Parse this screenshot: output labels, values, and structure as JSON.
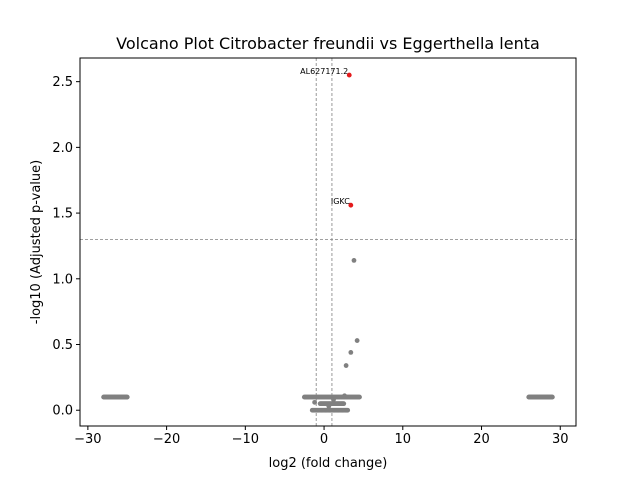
{
  "chart_data": {
    "type": "scatter",
    "title": "Volcano Plot Citrobacter freundii vs Eggerthella lenta",
    "xlabel": "log2 (fold change)",
    "ylabel": "-log10 (Adjusted p-value)",
    "xlim": [
      -31,
      32
    ],
    "ylim": [
      -0.12,
      2.68
    ],
    "xticks": [
      -30,
      -20,
      -10,
      0,
      10,
      20,
      30
    ],
    "yticks": [
      0.0,
      0.5,
      1.0,
      1.5,
      2.0,
      2.5
    ],
    "ytick_labels": [
      "0.0",
      "0.5",
      "1.0",
      "1.5",
      "2.0",
      "2.5"
    ],
    "grid": false,
    "thresholds": {
      "vertical": [
        -1,
        1
      ],
      "horizontal": 1.3
    },
    "colors": {
      "not_significant": "#808080",
      "significant": "#e41a1c",
      "threshold_line": "#808080"
    },
    "bands": [
      {
        "x_start": -28,
        "x_end": -25,
        "y": 0.1,
        "count": 40,
        "significant": false
      },
      {
        "x_start": 26,
        "x_end": 29,
        "y": 0.1,
        "count": 40,
        "significant": false
      },
      {
        "x_start": -2.5,
        "x_end": 4.5,
        "y": 0.1,
        "count": 55,
        "significant": false
      },
      {
        "x_start": -1.5,
        "x_end": 3.0,
        "y": 0.0,
        "count": 45,
        "significant": false
      },
      {
        "x_start": -0.5,
        "x_end": 2.5,
        "y": 0.05,
        "count": 30,
        "significant": false
      }
    ],
    "points": [
      {
        "x": 3.2,
        "y": 2.55,
        "label": "AL627171.2",
        "significant": true
      },
      {
        "x": 3.4,
        "y": 1.56,
        "label": "IGKC",
        "significant": true
      },
      {
        "x": 3.8,
        "y": 1.14,
        "label": "",
        "significant": false
      },
      {
        "x": 4.2,
        "y": 0.53,
        "label": "",
        "significant": false
      },
      {
        "x": 3.4,
        "y": 0.44,
        "label": "",
        "significant": false
      },
      {
        "x": 2.8,
        "y": 0.34,
        "label": "",
        "significant": false
      },
      {
        "x": 2.6,
        "y": 0.11,
        "label": "",
        "significant": false
      },
      {
        "x": 1.2,
        "y": 0.08,
        "label": "",
        "significant": false
      },
      {
        "x": 0.6,
        "y": 0.03,
        "label": "",
        "significant": false
      },
      {
        "x": -1.2,
        "y": 0.06,
        "label": "",
        "significant": false
      }
    ]
  }
}
